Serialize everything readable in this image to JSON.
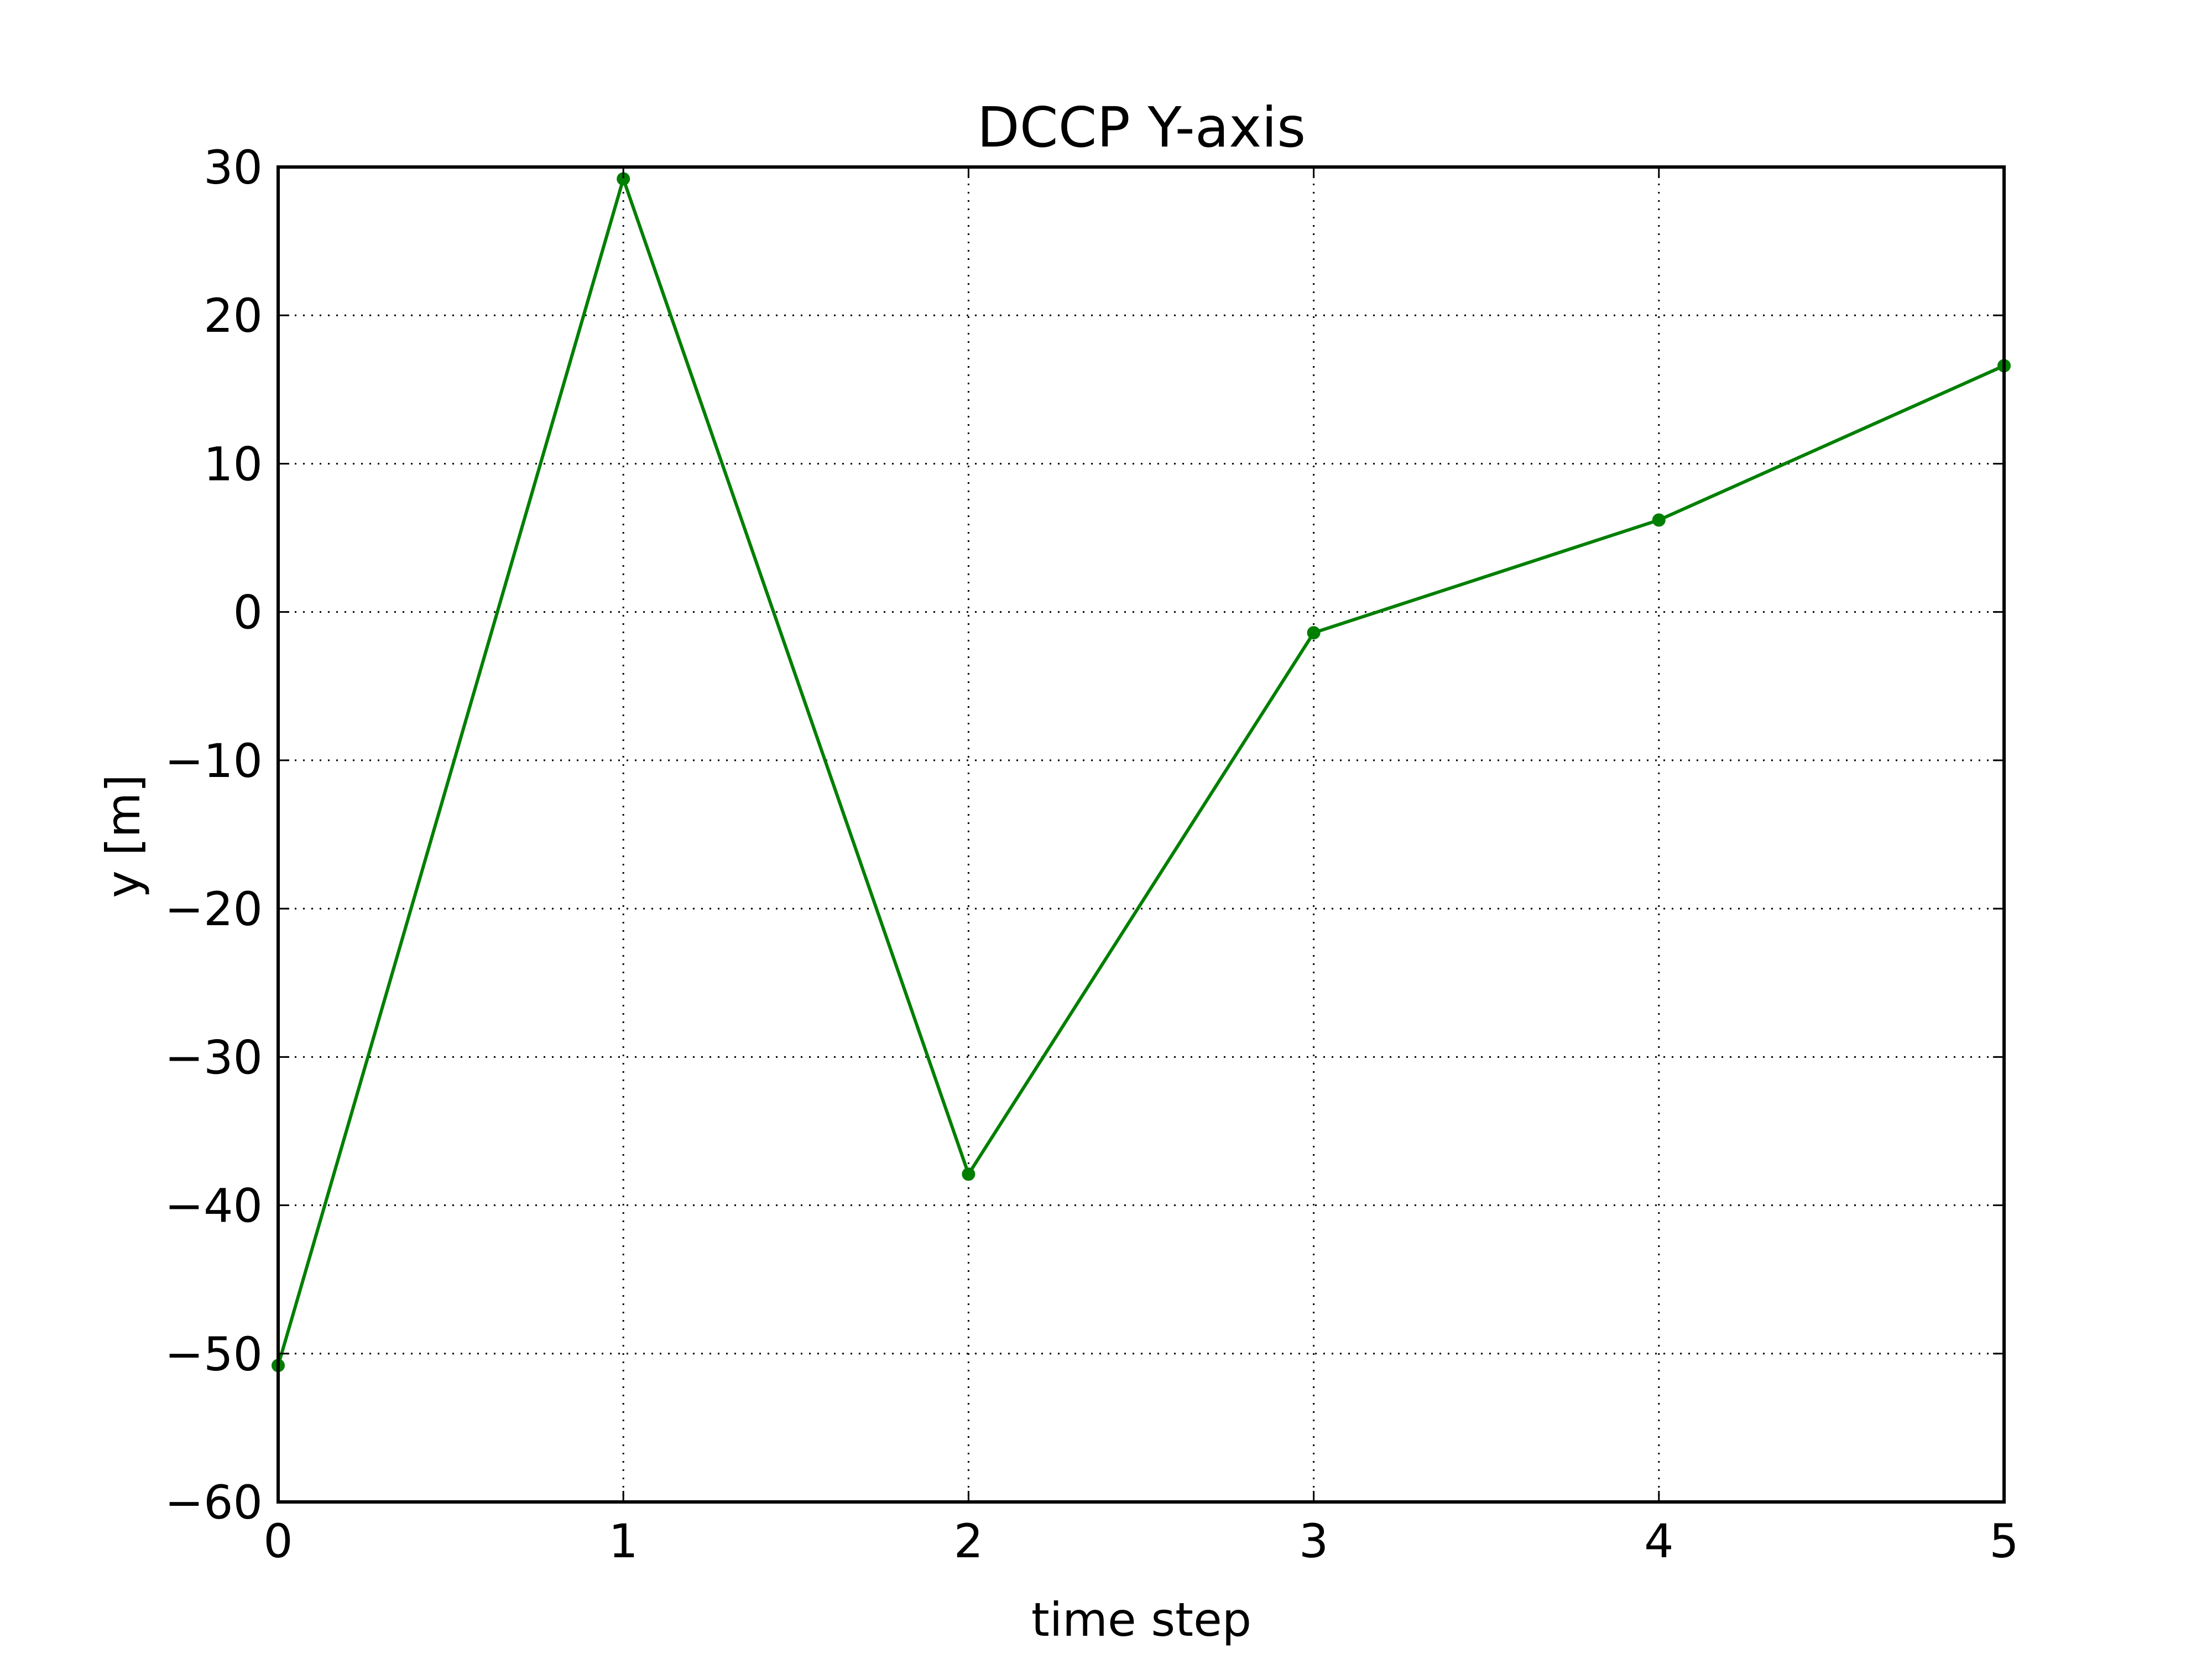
{
  "chart_data": {
    "type": "line",
    "title": "DCCP Y-axis",
    "xlabel": "time step",
    "ylabel": "y [m]",
    "xlim": [
      0,
      5
    ],
    "ylim": [
      -60,
      30
    ],
    "xticks": [
      0,
      1,
      2,
      3,
      4,
      5
    ],
    "yticks": [
      -60,
      -50,
      -40,
      -30,
      -20,
      -10,
      0,
      10,
      20,
      30
    ],
    "xtick_labels": [
      "0",
      "1",
      "2",
      "3",
      "4",
      "5"
    ],
    "ytick_labels": [
      "−60",
      "−50",
      "−40",
      "−30",
      "−20",
      "−10",
      "0",
      "10",
      "20",
      "30"
    ],
    "grid": true,
    "series": [
      {
        "color": "#007f00",
        "marker": "circle",
        "x": [
          0,
          1,
          2,
          3,
          4,
          5
        ],
        "y": [
          -50.8,
          29.2,
          -37.9,
          -1.4,
          6.2,
          16.6
        ]
      }
    ]
  }
}
